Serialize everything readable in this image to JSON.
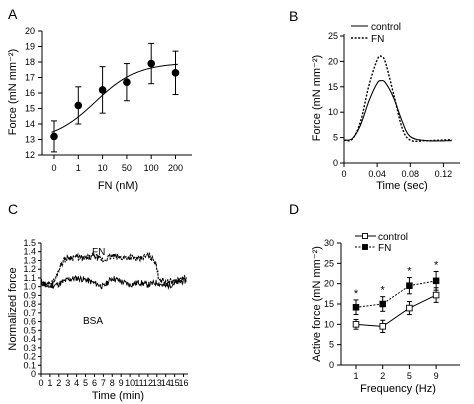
{
  "chart_data": [
    {
      "panel": "A",
      "type": "scatter",
      "xlabel": "FN (nM)",
      "ylabel": "Force (mN mm⁻²)",
      "categories": [
        "0",
        "1",
        "10",
        "50",
        "100",
        "200"
      ],
      "ylim": [
        12,
        20
      ],
      "yticks": [
        "12",
        "13",
        "14",
        "15",
        "16",
        "17",
        "18",
        "19",
        "20"
      ],
      "series": [
        {
          "values": [
            13.2,
            15.2,
            16.2,
            16.7,
            17.9,
            17.3
          ],
          "errors": [
            1.0,
            1.2,
            1.5,
            1.2,
            1.3,
            1.4
          ]
        }
      ],
      "fit_curve": {
        "bottom": 12.9,
        "top": 17.95,
        "midpoint": 1.7,
        "slope": 1.15
      }
    },
    {
      "panel": "B",
      "type": "line",
      "xlabel": "Time (sec)",
      "ylabel": "Force (mN mm⁻²)",
      "xlim": [
        0,
        0.14
      ],
      "ylim": [
        0,
        25
      ],
      "xticks": [
        "0",
        "0.04",
        "0.08",
        "0.12"
      ],
      "yticks": [
        "0",
        "5",
        "10",
        "15",
        "20",
        "25"
      ],
      "legend": [
        "control",
        "FN"
      ],
      "legend_position": "top-right",
      "series": [
        {
          "name": "control",
          "x": [
            0,
            0.01,
            0.02,
            0.03,
            0.04,
            0.045,
            0.05,
            0.06,
            0.07,
            0.08,
            0.1,
            0.13
          ],
          "y": [
            4.5,
            4.8,
            7.5,
            12.2,
            15.7,
            16.2,
            15.8,
            12.8,
            8.3,
            5.2,
            4.4,
            4.4
          ]
        },
        {
          "name": "FN",
          "x": [
            0,
            0.01,
            0.02,
            0.03,
            0.04,
            0.045,
            0.05,
            0.06,
            0.07,
            0.08,
            0.1,
            0.13
          ],
          "y": [
            4.5,
            4.7,
            8.2,
            15.2,
            20.3,
            21.0,
            19.8,
            13.5,
            7.0,
            4.5,
            4.4,
            4.6
          ]
        }
      ]
    },
    {
      "panel": "C",
      "type": "line",
      "xlabel": "Time (min)",
      "ylabel": "Normalized force",
      "xlim": [
        0,
        16.5
      ],
      "ylim": [
        0,
        1.5
      ],
      "xticks": [
        "0",
        "1",
        "2",
        "3",
        "4",
        "5",
        "6",
        "7",
        "8",
        "9",
        "10",
        "11",
        "12",
        "13",
        "14",
        "15",
        "16"
      ],
      "yticks": [
        "0",
        "0.1",
        "0.2",
        "0.3",
        "0.4",
        "0.5",
        "0.6",
        "0.7",
        "0.8",
        "0.9",
        "1.0",
        "1.1",
        "1.2",
        "1.3",
        "1.4",
        "1.5"
      ],
      "annotations": [
        "FN",
        "BSA"
      ],
      "series": [
        {
          "name": "FN",
          "x": [
            0,
            1,
            1.6,
            2,
            2.5,
            3,
            4,
            5,
            6,
            7,
            8,
            9,
            10,
            11,
            12,
            12.8,
            13.2,
            14,
            15,
            16.3
          ],
          "y": [
            1.02,
            1.03,
            1.08,
            1.2,
            1.3,
            1.33,
            1.34,
            1.32,
            1.35,
            1.3,
            1.35,
            1.33,
            1.34,
            1.31,
            1.36,
            1.3,
            1.1,
            1.05,
            1.06,
            1.1
          ]
        },
        {
          "name": "BSA",
          "x": [
            0,
            1,
            2,
            3,
            4,
            5,
            6,
            7,
            8,
            9,
            10,
            11,
            12,
            13,
            14,
            15,
            16.3
          ],
          "y": [
            1.05,
            1.0,
            1.03,
            1.08,
            1.1,
            1.08,
            1.04,
            1.0,
            1.1,
            1.06,
            1.02,
            1.05,
            1.02,
            1.05,
            1.0,
            1.04,
            1.07
          ]
        }
      ]
    },
    {
      "panel": "D",
      "type": "line",
      "xlabel": "Frequency (Hz)",
      "ylabel": "Active force (mN mm⁻²)",
      "categories": [
        "1",
        "2",
        "5",
        "9"
      ],
      "ylim": [
        0,
        30
      ],
      "yticks": [
        "0",
        "5",
        "10",
        "15",
        "20",
        "25",
        "30"
      ],
      "legend": [
        "control",
        "FN"
      ],
      "legend_position": "top-left",
      "significance": [
        "*",
        "*",
        "*",
        "*"
      ],
      "series": [
        {
          "name": "control",
          "values": [
            10.0,
            9.5,
            14.0,
            17.2
          ],
          "errors": [
            1.2,
            1.5,
            1.6,
            1.8
          ]
        },
        {
          "name": "FN",
          "values": [
            14.2,
            15.0,
            19.5,
            20.7
          ],
          "errors": [
            1.8,
            1.8,
            2.0,
            2.3
          ]
        }
      ]
    }
  ]
}
